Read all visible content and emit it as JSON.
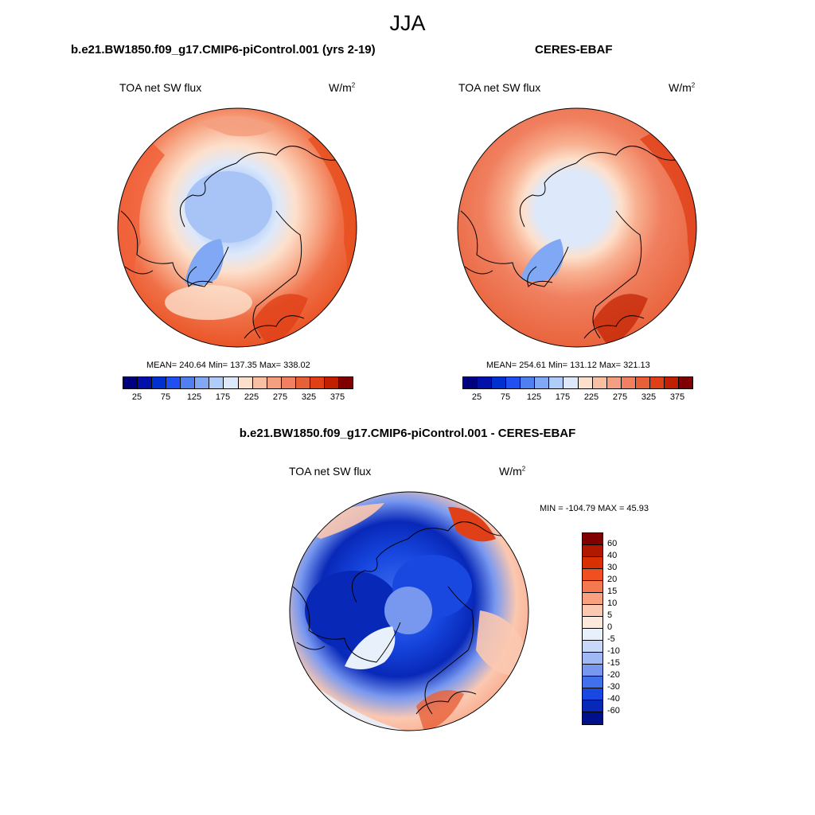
{
  "season": "JJA",
  "panels": [
    {
      "title": "b.e21.BW1850.f09_g17.CMIP6-piControl.001 (yrs 2-19)",
      "variable": "TOA net SW flux",
      "units_base": "W/m",
      "units_exp": "2",
      "stats": "MEAN= 240.64  Min= 137.35  Max= 338.02"
    },
    {
      "title": "CERES-EBAF",
      "variable": "TOA net SW flux",
      "units_base": "W/m",
      "units_exp": "2",
      "stats": "MEAN= 254.61  Min= 131.12  Max= 321.13"
    },
    {
      "title": "b.e21.BW1850.f09_g17.CMIP6-piControl.001 - CERES-EBAF",
      "variable": "TOA net SW flux",
      "units_base": "W/m",
      "units_exp": "2",
      "stats": "MIN = -104.79 MAX =  45.93"
    }
  ],
  "colorbar_top": {
    "colors": [
      "#00007f",
      "#0010a8",
      "#0030d0",
      "#2050f0",
      "#5080f0",
      "#80a8f4",
      "#b0ccf8",
      "#dde9fb",
      "#fde0cc",
      "#f8c0a0",
      "#f4a080",
      "#f08060",
      "#e86038",
      "#e04018",
      "#c02000",
      "#800000"
    ],
    "tick_labels": [
      "25",
      "75",
      "125",
      "175",
      "225",
      "275",
      "325",
      "375"
    ]
  },
  "colorbar_diff": {
    "colors": [
      "#800000",
      "#b01800",
      "#d83000",
      "#f05020",
      "#f47850",
      "#f8a080",
      "#fbc8b0",
      "#fde8dc",
      "#e8f0fc",
      "#c8d8f8",
      "#a0b8f4",
      "#7898f0",
      "#4070ec",
      "#1848e0",
      "#0828b8",
      "#00108a"
    ],
    "tick_labels": [
      "60",
      "40",
      "30",
      "20",
      "15",
      "10",
      "5",
      "0",
      "-5",
      "-10",
      "-15",
      "-20",
      "-30",
      "-40",
      "-60"
    ]
  }
}
